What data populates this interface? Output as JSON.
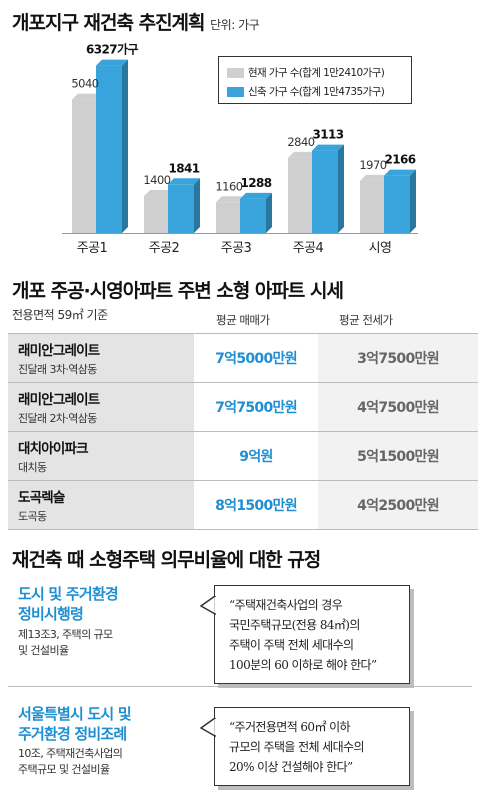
{
  "section1": {
    "title": "개포지구 재건축 추진계획",
    "unit": "단위: 가구"
  },
  "chart_data": {
    "type": "bar",
    "title": "개포지구 재건축 추진계획",
    "unit": "단위: 가구",
    "categories": [
      "주공1",
      "주공2",
      "주공3",
      "주공4",
      "시영"
    ],
    "series": [
      {
        "name": "현재 가구 수(합계 1만2410가구)",
        "values": [
          5040,
          1400,
          1160,
          2840,
          1970
        ],
        "color": "#cfcfcf"
      },
      {
        "name": "신축 가구 수(합계 1만4735가구)",
        "values": [
          6327,
          1841,
          1288,
          3113,
          2166
        ],
        "color": "#39a4dc"
      }
    ],
    "value_labels": {
      "current": [
        "5040",
        "1400",
        "1160",
        "2840",
        "1970"
      ],
      "new": [
        "6327가구",
        "1841",
        "1288",
        "3113",
        "2166"
      ]
    },
    "ylim": [
      0,
      6500
    ],
    "grid": false,
    "legend_position": "top-right"
  },
  "section2": {
    "title": "개포 주공·시영아파트 주변 소형 아파트 시세",
    "note": "전용면적 59㎡ 기준",
    "col_sale": "평균 매매가",
    "col_jeonse": "평균 전세가",
    "rows": [
      {
        "name": "래미안그레이트",
        "loc": "진달래 3차·역삼동",
        "sale": "7억5000만원",
        "jeonse": "3억7500만원"
      },
      {
        "name": "래미안그레이트",
        "loc": "진달래 2차·역삼동",
        "sale": "7억7500만원",
        "jeonse": "4억7500만원"
      },
      {
        "name": "대치아이파크",
        "loc": "대치동",
        "sale": "9억원",
        "jeonse": "5억1500만원"
      },
      {
        "name": "도곡렉슬",
        "loc": "도곡동",
        "sale": "8억1500만원",
        "jeonse": "4억2500만원"
      }
    ]
  },
  "section3": {
    "title": "재건축 때 소형주택 의무비율에 대한 규정",
    "rules": [
      {
        "name_lines": [
          "도시 및 주거환경",
          "정비시행령"
        ],
        "article_lines": [
          "제13조3, 주택의 규모",
          "및 건설비율"
        ],
        "quote_lines": [
          "“주택재건축사업의 경우",
          "국민주택규모(전용 84㎡)의",
          "주택이 주택 전체 세대수의",
          "100분의 60 이하로 해야 한다”"
        ]
      },
      {
        "name_lines": [
          "서울특별시 도시 및",
          "주거환경 정비조례"
        ],
        "article_lines": [
          "10조, 주택재건축사업의",
          "주택규모 및 건설비율"
        ],
        "quote_lines": [
          "“주거전용면적 60㎡ 이하",
          "규모의 주택을 전체 세대수의",
          "20% 이상 건설해야 한다”"
        ]
      }
    ]
  }
}
